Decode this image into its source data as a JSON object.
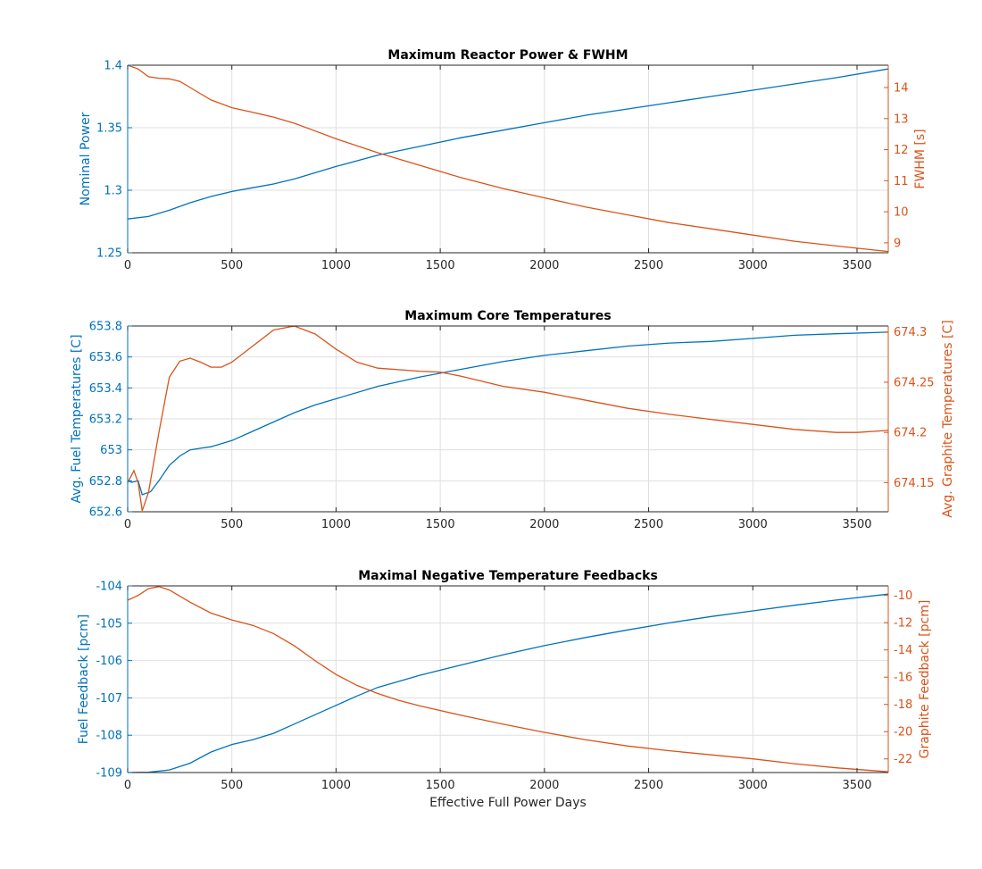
{
  "colors": {
    "left": "#0072BD",
    "right": "#D95319",
    "grid": "#dfdfdf",
    "axis": "#262626"
  },
  "chart_data": [
    {
      "type": "line",
      "title": "Maximum Reactor Power & FWHM",
      "xlabel": "",
      "ylabel": "Nominal Power",
      "y2label": "FWHM [s]",
      "xlim": [
        0,
        3650
      ],
      "ylim": [
        1.25,
        1.4
      ],
      "y2lim": [
        8.68,
        14.72
      ],
      "xticks": [
        0,
        500,
        1000,
        1500,
        2000,
        2500,
        3000,
        3500
      ],
      "yticks": [
        1.25,
        1.3,
        1.35,
        1.4
      ],
      "yticklabels": [
        "1.25",
        "1.3",
        "1.35",
        "1.4"
      ],
      "y2ticks": [
        9,
        10,
        11,
        12,
        13,
        14
      ],
      "y2ticklabels": [
        "9",
        "10",
        "11",
        "12",
        "13",
        "14"
      ],
      "grid": true,
      "series": [
        {
          "axis": "left",
          "x": [
            0,
            100,
            200,
            300,
            400,
            500,
            600,
            700,
            800,
            900,
            1000,
            1200,
            1400,
            1600,
            1800,
            2000,
            2200,
            2400,
            2600,
            2800,
            3000,
            3200,
            3400,
            3650
          ],
          "values": [
            1.277,
            1.279,
            1.284,
            1.29,
            1.295,
            1.299,
            1.302,
            1.305,
            1.309,
            1.314,
            1.319,
            1.328,
            1.335,
            1.342,
            1.348,
            1.354,
            1.36,
            1.365,
            1.37,
            1.375,
            1.38,
            1.385,
            1.39,
            1.397
          ]
        },
        {
          "axis": "right",
          "x": [
            0,
            50,
            100,
            150,
            200,
            250,
            300,
            350,
            400,
            500,
            600,
            700,
            800,
            900,
            1000,
            1200,
            1400,
            1600,
            1800,
            2000,
            2200,
            2400,
            2600,
            2800,
            3000,
            3200,
            3400,
            3650
          ],
          "values": [
            14.72,
            14.6,
            14.35,
            14.3,
            14.28,
            14.2,
            14.0,
            13.8,
            13.6,
            13.35,
            13.2,
            13.05,
            12.85,
            12.6,
            12.35,
            11.9,
            11.5,
            11.1,
            10.75,
            10.45,
            10.15,
            9.9,
            9.65,
            9.45,
            9.25,
            9.05,
            8.9,
            8.72
          ]
        }
      ]
    },
    {
      "type": "line",
      "title": "Maximum Core Temperatures",
      "xlabel": "",
      "ylabel": "Avg. Fuel Temperatures [C]",
      "y2label": "Avg. Graphite Temperatures [C]",
      "xlim": [
        0,
        3650
      ],
      "ylim": [
        652.6,
        653.8
      ],
      "y2lim": [
        674.121,
        674.306
      ],
      "xticks": [
        0,
        500,
        1000,
        1500,
        2000,
        2500,
        3000,
        3500
      ],
      "yticks": [
        652.6,
        652.8,
        653,
        653.2,
        653.4,
        653.6,
        653.8
      ],
      "yticklabels": [
        "652.6",
        "652.8",
        "653",
        "653.2",
        "653.4",
        "653.6",
        "653.8"
      ],
      "y2ticks": [
        674.15,
        674.2,
        674.25,
        674.3
      ],
      "y2ticklabels": [
        "674.15",
        "674.2",
        "674.25",
        "674.3"
      ],
      "grid": true,
      "series": [
        {
          "axis": "left",
          "x": [
            0,
            20,
            50,
            70,
            90,
            110,
            150,
            200,
            250,
            300,
            350,
            400,
            500,
            600,
            700,
            800,
            900,
            1000,
            1200,
            1400,
            1600,
            1800,
            2000,
            2200,
            2400,
            2600,
            2800,
            3000,
            3200,
            3400,
            3650
          ],
          "values": [
            652.8,
            652.79,
            652.8,
            652.71,
            652.72,
            652.73,
            652.8,
            652.9,
            652.96,
            653.0,
            653.01,
            653.02,
            653.06,
            653.12,
            653.18,
            653.24,
            653.29,
            653.33,
            653.41,
            653.47,
            653.52,
            653.57,
            653.61,
            653.64,
            653.67,
            653.69,
            653.7,
            653.72,
            653.74,
            653.75,
            653.76
          ]
        },
        {
          "axis": "right",
          "x": [
            0,
            30,
            50,
            70,
            100,
            150,
            200,
            250,
            300,
            350,
            400,
            450,
            500,
            600,
            700,
            800,
            900,
            1000,
            1100,
            1200,
            1400,
            1500,
            1600,
            1800,
            2000,
            2200,
            2400,
            2600,
            2800,
            3000,
            3200,
            3400,
            3500,
            3650
          ],
          "values": [
            674.15,
            674.162,
            674.15,
            674.122,
            674.14,
            674.2,
            674.255,
            674.271,
            674.274,
            674.27,
            674.265,
            674.265,
            674.27,
            674.286,
            674.302,
            674.306,
            674.298,
            674.283,
            674.27,
            674.264,
            674.261,
            674.26,
            674.256,
            674.246,
            674.24,
            674.232,
            674.224,
            674.218,
            674.213,
            674.208,
            674.203,
            674.2,
            674.2,
            674.202
          ]
        }
      ]
    },
    {
      "type": "line",
      "title": "Maximal Negative Temperature Feedbacks",
      "xlabel": "Effective Full Power Days",
      "ylabel": "Fuel Feedback [pcm]",
      "y2label": "Graphite Feedback [pcm]",
      "xlim": [
        0,
        3650
      ],
      "ylim": [
        -109,
        -104
      ],
      "y2lim": [
        -23.0,
        -9.3
      ],
      "xticks": [
        0,
        500,
        1000,
        1500,
        2000,
        2500,
        3000,
        3500
      ],
      "yticks": [
        -109,
        -108,
        -107,
        -106,
        -105,
        -104
      ],
      "yticklabels": [
        "-109",
        "-108",
        "-107",
        "-106",
        "-105",
        "-104"
      ],
      "y2ticks": [
        -22,
        -20,
        -18,
        -16,
        -14,
        -12,
        -10
      ],
      "y2ticklabels": [
        "-22",
        "-20",
        "-18",
        "-16",
        "-14",
        "-12",
        "-10"
      ],
      "grid": true,
      "series": [
        {
          "axis": "left",
          "x": [
            0,
            100,
            200,
            300,
            400,
            500,
            600,
            700,
            800,
            900,
            1000,
            1100,
            1200,
            1400,
            1600,
            1800,
            2000,
            2200,
            2400,
            2600,
            2800,
            3000,
            3200,
            3400,
            3650
          ],
          "values": [
            -109.0,
            -108.99,
            -108.93,
            -108.75,
            -108.45,
            -108.25,
            -108.12,
            -107.95,
            -107.7,
            -107.45,
            -107.2,
            -106.95,
            -106.72,
            -106.4,
            -106.12,
            -105.85,
            -105.6,
            -105.38,
            -105.18,
            -104.99,
            -104.82,
            -104.67,
            -104.52,
            -104.38,
            -104.22
          ]
        },
        {
          "axis": "right",
          "x": [
            0,
            50,
            100,
            150,
            200,
            300,
            400,
            500,
            600,
            700,
            800,
            900,
            1000,
            1100,
            1200,
            1300,
            1400,
            1600,
            1800,
            2000,
            2200,
            2400,
            2600,
            2800,
            3000,
            3200,
            3400,
            3650
          ],
          "values": [
            -10.35,
            -10.0,
            -9.5,
            -9.35,
            -9.6,
            -10.5,
            -11.3,
            -11.8,
            -12.2,
            -12.8,
            -13.7,
            -14.8,
            -15.8,
            -16.6,
            -17.2,
            -17.7,
            -18.1,
            -18.8,
            -19.45,
            -20.05,
            -20.6,
            -21.05,
            -21.4,
            -21.7,
            -22.0,
            -22.35,
            -22.65,
            -22.95
          ]
        }
      ]
    }
  ]
}
